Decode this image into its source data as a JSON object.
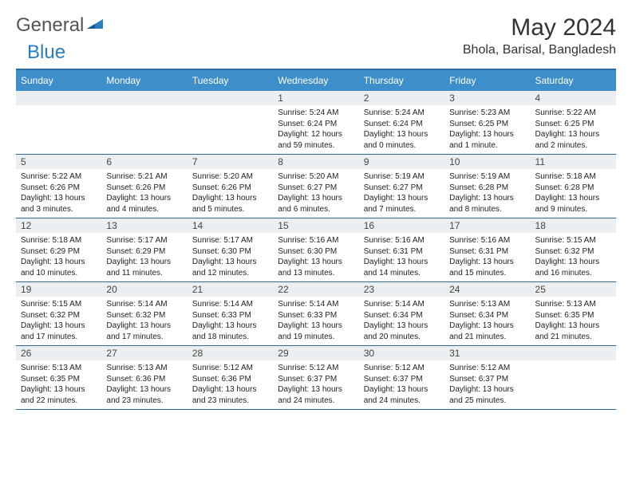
{
  "logo": {
    "general": "General",
    "blue": "Blue"
  },
  "title": "May 2024",
  "subtitle": "Bhola, Barisal, Bangladesh",
  "day_headers": [
    "Sunday",
    "Monday",
    "Tuesday",
    "Wednesday",
    "Thursday",
    "Friday",
    "Saturday"
  ],
  "colors": {
    "header_bg": "#3d8ec9",
    "border": "#2a6da3",
    "band_bg": "#eceff1"
  },
  "weeks": [
    [
      null,
      null,
      null,
      {
        "n": "1",
        "sr": "5:24 AM",
        "ss": "6:24 PM",
        "dl": "12 hours and 59 minutes."
      },
      {
        "n": "2",
        "sr": "5:24 AM",
        "ss": "6:24 PM",
        "dl": "13 hours and 0 minutes."
      },
      {
        "n": "3",
        "sr": "5:23 AM",
        "ss": "6:25 PM",
        "dl": "13 hours and 1 minute."
      },
      {
        "n": "4",
        "sr": "5:22 AM",
        "ss": "6:25 PM",
        "dl": "13 hours and 2 minutes."
      }
    ],
    [
      {
        "n": "5",
        "sr": "5:22 AM",
        "ss": "6:26 PM",
        "dl": "13 hours and 3 minutes."
      },
      {
        "n": "6",
        "sr": "5:21 AM",
        "ss": "6:26 PM",
        "dl": "13 hours and 4 minutes."
      },
      {
        "n": "7",
        "sr": "5:20 AM",
        "ss": "6:26 PM",
        "dl": "13 hours and 5 minutes."
      },
      {
        "n": "8",
        "sr": "5:20 AM",
        "ss": "6:27 PM",
        "dl": "13 hours and 6 minutes."
      },
      {
        "n": "9",
        "sr": "5:19 AM",
        "ss": "6:27 PM",
        "dl": "13 hours and 7 minutes."
      },
      {
        "n": "10",
        "sr": "5:19 AM",
        "ss": "6:28 PM",
        "dl": "13 hours and 8 minutes."
      },
      {
        "n": "11",
        "sr": "5:18 AM",
        "ss": "6:28 PM",
        "dl": "13 hours and 9 minutes."
      }
    ],
    [
      {
        "n": "12",
        "sr": "5:18 AM",
        "ss": "6:29 PM",
        "dl": "13 hours and 10 minutes."
      },
      {
        "n": "13",
        "sr": "5:17 AM",
        "ss": "6:29 PM",
        "dl": "13 hours and 11 minutes."
      },
      {
        "n": "14",
        "sr": "5:17 AM",
        "ss": "6:30 PM",
        "dl": "13 hours and 12 minutes."
      },
      {
        "n": "15",
        "sr": "5:16 AM",
        "ss": "6:30 PM",
        "dl": "13 hours and 13 minutes."
      },
      {
        "n": "16",
        "sr": "5:16 AM",
        "ss": "6:31 PM",
        "dl": "13 hours and 14 minutes."
      },
      {
        "n": "17",
        "sr": "5:16 AM",
        "ss": "6:31 PM",
        "dl": "13 hours and 15 minutes."
      },
      {
        "n": "18",
        "sr": "5:15 AM",
        "ss": "6:32 PM",
        "dl": "13 hours and 16 minutes."
      }
    ],
    [
      {
        "n": "19",
        "sr": "5:15 AM",
        "ss": "6:32 PM",
        "dl": "13 hours and 17 minutes."
      },
      {
        "n": "20",
        "sr": "5:14 AM",
        "ss": "6:32 PM",
        "dl": "13 hours and 17 minutes."
      },
      {
        "n": "21",
        "sr": "5:14 AM",
        "ss": "6:33 PM",
        "dl": "13 hours and 18 minutes."
      },
      {
        "n": "22",
        "sr": "5:14 AM",
        "ss": "6:33 PM",
        "dl": "13 hours and 19 minutes."
      },
      {
        "n": "23",
        "sr": "5:14 AM",
        "ss": "6:34 PM",
        "dl": "13 hours and 20 minutes."
      },
      {
        "n": "24",
        "sr": "5:13 AM",
        "ss": "6:34 PM",
        "dl": "13 hours and 21 minutes."
      },
      {
        "n": "25",
        "sr": "5:13 AM",
        "ss": "6:35 PM",
        "dl": "13 hours and 21 minutes."
      }
    ],
    [
      {
        "n": "26",
        "sr": "5:13 AM",
        "ss": "6:35 PM",
        "dl": "13 hours and 22 minutes."
      },
      {
        "n": "27",
        "sr": "5:13 AM",
        "ss": "6:36 PM",
        "dl": "13 hours and 23 minutes."
      },
      {
        "n": "28",
        "sr": "5:12 AM",
        "ss": "6:36 PM",
        "dl": "13 hours and 23 minutes."
      },
      {
        "n": "29",
        "sr": "5:12 AM",
        "ss": "6:37 PM",
        "dl": "13 hours and 24 minutes."
      },
      {
        "n": "30",
        "sr": "5:12 AM",
        "ss": "6:37 PM",
        "dl": "13 hours and 24 minutes."
      },
      {
        "n": "31",
        "sr": "5:12 AM",
        "ss": "6:37 PM",
        "dl": "13 hours and 25 minutes."
      },
      null
    ]
  ],
  "labels": {
    "sunrise": "Sunrise: ",
    "sunset": "Sunset: ",
    "daylight": "Daylight: "
  }
}
